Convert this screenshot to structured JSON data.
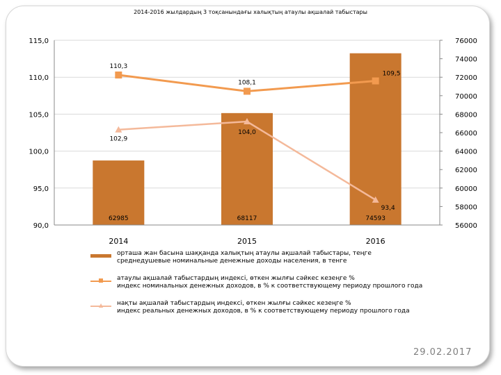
{
  "chart_data": {
    "type": "bar+line",
    "title": "2014-2016 жылдардың 3 тоқсанындағы халықтың атаулы ақшалай табыстары",
    "categories": [
      "2014",
      "2015",
      "2016"
    ],
    "left_axis": {
      "range": [
        90.0,
        115.0
      ],
      "ticks": [
        "90,0",
        "95,0",
        "100,0",
        "105,0",
        "110,0",
        "115,0"
      ]
    },
    "right_axis": {
      "range": [
        56000,
        76000
      ],
      "ticks": [
        "56000",
        "58000",
        "60000",
        "62000",
        "64000",
        "66000",
        "68000",
        "70000",
        "72000",
        "74000",
        "76000"
      ]
    },
    "series": [
      {
        "name": "орташа жан басына шаққанда халықтың атаулы ақшалай табыстары, теңге",
        "name_ru": "среднедушевые номинальные денежные доходы населения, в тенге",
        "kind": "bar",
        "axis": "right",
        "color": "#c9772f",
        "values": [
          62985,
          68117,
          74593
        ],
        "labels": [
          "62985",
          "68117",
          "74593"
        ]
      },
      {
        "name": "атаулы ақшалай табыстардың индексі, өткен жылғы сәйкес кезеңге %",
        "name_ru": "индекс номинальных денежных доходов, в % к соответствующему периоду прошлого года",
        "kind": "line",
        "axis": "left",
        "color": "#f29a4f",
        "values": [
          110.3,
          108.1,
          109.5
        ],
        "labels": [
          "110,3",
          "108,1",
          "109,5"
        ]
      },
      {
        "name": "нақты ақшалай табыстардың индексі, өткен жылғы сәйкес кезеңге %",
        "name_ru": "индекс реальных денежных доходов, в % к соответствующему периоду прошлого года",
        "kind": "line",
        "axis": "left",
        "color": "#f4b99a",
        "values": [
          102.9,
          104.0,
          93.4
        ],
        "labels": [
          "102,9",
          "104,0",
          "93,4"
        ]
      }
    ],
    "grid": true,
    "legend_position": "bottom"
  },
  "slide": {
    "date": "29.02.2017"
  }
}
